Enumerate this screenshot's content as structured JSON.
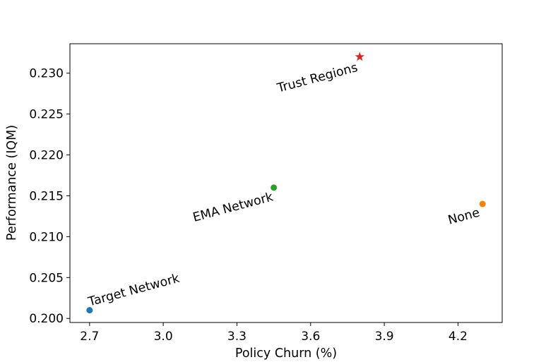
{
  "chart_data": {
    "type": "scatter",
    "title": "",
    "xlabel": "Policy Churn (%)",
    "ylabel": "Performance (IQM)",
    "xlim": [
      2.62,
      4.38
    ],
    "ylim": [
      0.1995,
      0.2336
    ],
    "xticks": [
      "2.7",
      "3.0",
      "3.3",
      "3.6",
      "3.9",
      "4.2"
    ],
    "yticks": [
      "0.200",
      "0.205",
      "0.210",
      "0.215",
      "0.220",
      "0.225",
      "0.230"
    ],
    "grid": false,
    "points": [
      {
        "label": "Target Network",
        "x": 2.7,
        "y": 0.201,
        "color": "#1f77b4",
        "marker": "circle"
      },
      {
        "label": "None",
        "x": 4.3,
        "y": 0.214,
        "color": "#ff7f0e",
        "marker": "circle"
      },
      {
        "label": "EMA Network",
        "x": 3.45,
        "y": 0.216,
        "color": "#2ca02c",
        "marker": "circle"
      },
      {
        "label": "Trust Regions",
        "x": 3.8,
        "y": 0.232,
        "color": "#d62728",
        "marker": "star"
      }
    ]
  }
}
